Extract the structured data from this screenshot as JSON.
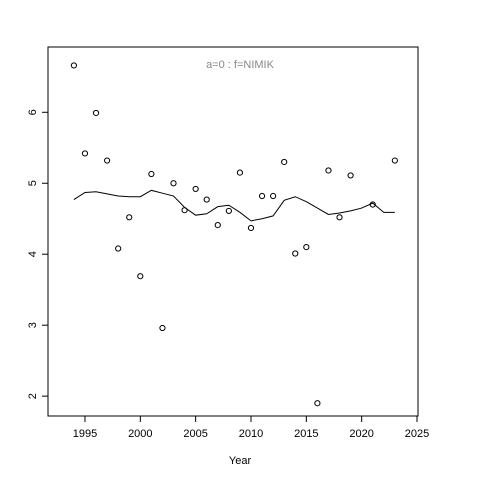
{
  "chart_data": {
    "type": "scatter",
    "title": "a=0  :  f=NIMIK",
    "x_label": "Year",
    "x": [
      1994,
      1995,
      1996,
      1997,
      1998,
      1999,
      2000,
      2001,
      2002,
      2003,
      2004,
      2005,
      2006,
      2007,
      2008,
      2009,
      2010,
      2011,
      2012,
      2013,
      2014,
      2015,
      2016,
      2017,
      2018,
      2019,
      2020,
      2021,
      2022,
      2023
    ],
    "series": [
      {
        "style": "points",
        "color": "#000000",
        "values": [
          6.66,
          5.42,
          5.99,
          5.32,
          4.08,
          4.52,
          3.69,
          5.13,
          2.96,
          5.0,
          4.62,
          4.92,
          4.77,
          4.41,
          4.61,
          5.15,
          4.37,
          4.82,
          4.82,
          5.3,
          4.01,
          4.1,
          1.9,
          5.18,
          4.52,
          5.11,
          null,
          4.7,
          null,
          5.32
        ]
      },
      {
        "style": "line",
        "color": "#000000",
        "values": [
          4.77,
          4.87,
          4.88,
          4.85,
          4.82,
          4.81,
          4.81,
          4.9,
          4.86,
          4.82,
          4.66,
          4.55,
          4.57,
          4.67,
          4.69,
          4.59,
          4.47,
          4.5,
          4.54,
          4.76,
          4.81,
          4.74,
          4.65,
          4.56,
          4.58,
          4.61,
          4.65,
          4.72,
          4.59,
          4.59
        ]
      }
    ],
    "xlim": [
      1991.66,
      2025.09
    ],
    "ylim": [
      1.72,
      6.92
    ],
    "xticks": [
      1995,
      2000,
      2005,
      2010,
      2015,
      2020,
      2025
    ],
    "yticks": [
      2,
      3,
      4,
      5,
      6
    ]
  }
}
